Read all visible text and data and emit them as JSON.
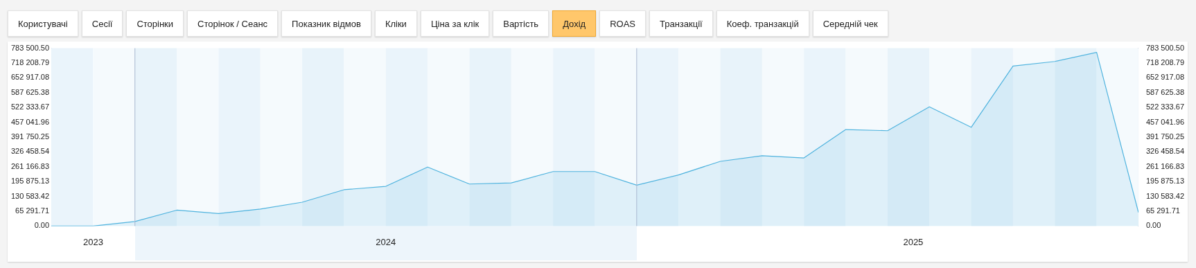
{
  "chart_data": {
    "type": "area",
    "annotations": [
      "Користувачі",
      "Сесії",
      "Сторінки",
      "Сторінок / Сеанс",
      "Показник відмов",
      "Кліки",
      "Ціна за клік",
      "Вартість",
      "Дохід",
      "ROAS",
      "Транзакції",
      "Коеф. транзакцій",
      "Середній чек"
    ],
    "x": [
      "2023-11",
      "2023-12",
      "2024-01",
      "2024-02",
      "2024-03",
      "2024-04",
      "2024-05",
      "2024-06",
      "2024-07",
      "2024-08",
      "2024-09",
      "2024-10",
      "2024-11",
      "2024-12",
      "2025-01",
      "2025-02",
      "2025-03",
      "2025-04",
      "2025-05",
      "2025-06",
      "2025-07",
      "2025-08",
      "2025-09",
      "2025-10",
      "2025-11",
      "2025-12",
      "2026-01"
    ],
    "series": [
      {
        "color": "#4fb3de",
        "values": [
          0,
          0,
          20000,
          70000,
          55000,
          75000,
          105000,
          160000,
          175000,
          260000,
          185000,
          190000,
          240000,
          240000,
          180000,
          225000,
          285000,
          310000,
          300000,
          425000,
          420000,
          525000,
          435000,
          705000,
          725000,
          765000,
          60000
        ]
      }
    ],
    "xlim": [
      "2023-11",
      "2026-01"
    ],
    "xticks": [
      {
        "value": "2023-12-01",
        "label": "2023"
      },
      {
        "value": "2024-07-01",
        "label": "2024"
      },
      {
        "value": "2025-07-20",
        "label": "2025"
      }
    ],
    "ylim": [
      0,
      783500.5
    ],
    "yticks": [
      {
        "value": 0,
        "label": "0.00"
      },
      {
        "value": 65291.71,
        "label": "65 291.71"
      },
      {
        "value": 130583.42,
        "label": "130 583.42"
      },
      {
        "value": 195875.13,
        "label": "195 875.13"
      },
      {
        "value": 261166.83,
        "label": "261 166.83"
      },
      {
        "value": 326458.54,
        "label": "326 458.54"
      },
      {
        "value": 391750.25,
        "label": "391 750.25"
      },
      {
        "value": 457041.96,
        "label": "457 041.96"
      },
      {
        "value": 522333.67,
        "label": "522 333.67"
      },
      {
        "value": 587625.38,
        "label": "587 625.38"
      },
      {
        "value": 652917.08,
        "label": "652 917.08"
      },
      {
        "value": 718208.79,
        "label": "718 208.79"
      },
      {
        "value": 783500.5,
        "label": "783 500.50"
      }
    ],
    "y2lim": [
      0,
      783500.5
    ],
    "y2ticks": [
      {
        "value": 0,
        "label": "0.00"
      },
      {
        "value": 65291.71,
        "label": "65 291.71"
      },
      {
        "value": 130583.42,
        "label": "130 583.42"
      },
      {
        "value": 195875.13,
        "label": "195 875.13"
      },
      {
        "value": 261166.83,
        "label": "261 166.83"
      },
      {
        "value": 326458.54,
        "label": "326 458.54"
      },
      {
        "value": 391750.25,
        "label": "391 750.25"
      },
      {
        "value": 457041.96,
        "label": "457 041.96"
      },
      {
        "value": 522333.67,
        "label": "522 333.67"
      },
      {
        "value": 587625.38,
        "label": "587 625.38"
      },
      {
        "value": 652917.08,
        "label": "652 917.08"
      },
      {
        "value": 718208.79,
        "label": "718 208.79"
      },
      {
        "value": 783500.5,
        "label": "783 500.50"
      }
    ],
    "ref_lines": [
      {
        "axis": "x",
        "value": "2024-01",
        "color": "#a9b8d0"
      },
      {
        "axis": "x",
        "value": "2025-01",
        "color": "#a9b8d0"
      }
    ],
    "bands": [
      {
        "axis": "x",
        "from": "2023-11",
        "to": "2023-12",
        "color": "#eaf4fb"
      },
      {
        "axis": "x",
        "from": "2023-12",
        "to": "2024-01",
        "color": "#f5fafd"
      },
      {
        "axis": "x",
        "from": "2024-01",
        "to": "2024-02",
        "color": "#e8f3fa"
      },
      {
        "axis": "x",
        "from": "2024-02",
        "to": "2024-03",
        "color": "#f5fafd"
      },
      {
        "axis": "x",
        "from": "2024-03",
        "to": "2024-04",
        "color": "#eaf4fb"
      },
      {
        "axis": "x",
        "from": "2024-04",
        "to": "2024-05",
        "color": "#f5fafd"
      },
      {
        "axis": "x",
        "from": "2024-05",
        "to": "2024-06",
        "color": "#e8f3fa"
      },
      {
        "axis": "x",
        "from": "2024-06",
        "to": "2024-07",
        "color": "#f5fafd"
      },
      {
        "axis": "x",
        "from": "2024-07",
        "to": "2024-08",
        "color": "#eaf4fb"
      },
      {
        "axis": "x",
        "from": "2024-08",
        "to": "2024-09",
        "color": "#f5fafd"
      },
      {
        "axis": "x",
        "from": "2024-09",
        "to": "2024-10",
        "color": "#e8f3fa"
      },
      {
        "axis": "x",
        "from": "2024-10",
        "to": "2024-11",
        "color": "#f5fafd"
      },
      {
        "axis": "x",
        "from": "2024-11",
        "to": "2024-12",
        "color": "#eaf4fb"
      },
      {
        "axis": "x",
        "from": "2024-12",
        "to": "2025-01",
        "color": "#f5fafd"
      },
      {
        "axis": "x",
        "from": "2025-01",
        "to": "2025-02",
        "color": "#eaf4fb"
      },
      {
        "axis": "x",
        "from": "2025-02",
        "to": "2025-03",
        "color": "#f5fafd"
      },
      {
        "axis": "x",
        "from": "2025-03",
        "to": "2025-04",
        "color": "#e8f3fa"
      },
      {
        "axis": "x",
        "from": "2025-04",
        "to": "2025-05",
        "color": "#f5fafd"
      },
      {
        "axis": "x",
        "from": "2025-05",
        "to": "2025-06",
        "color": "#eaf4fb"
      },
      {
        "axis": "x",
        "from": "2025-06",
        "to": "2025-07",
        "color": "#f5fafd"
      },
      {
        "axis": "x",
        "from": "2025-07",
        "to": "2025-08",
        "color": "#e8f3fa"
      },
      {
        "axis": "x",
        "from": "2025-08",
        "to": "2025-09",
        "color": "#f5fafd"
      },
      {
        "axis": "x",
        "from": "2025-09",
        "to": "2025-10",
        "color": "#eaf4fb"
      },
      {
        "axis": "x",
        "from": "2025-10",
        "to": "2025-11",
        "color": "#f5fafd"
      },
      {
        "axis": "x",
        "from": "2025-11",
        "to": "2025-12",
        "color": "#e8f3fa"
      },
      {
        "axis": "x",
        "from": "2025-12",
        "to": "2026-01",
        "color": "#f5fafd"
      }
    ],
    "grid": false,
    "legend": false,
    "marker": "none",
    "line_style": "solid"
  }
}
